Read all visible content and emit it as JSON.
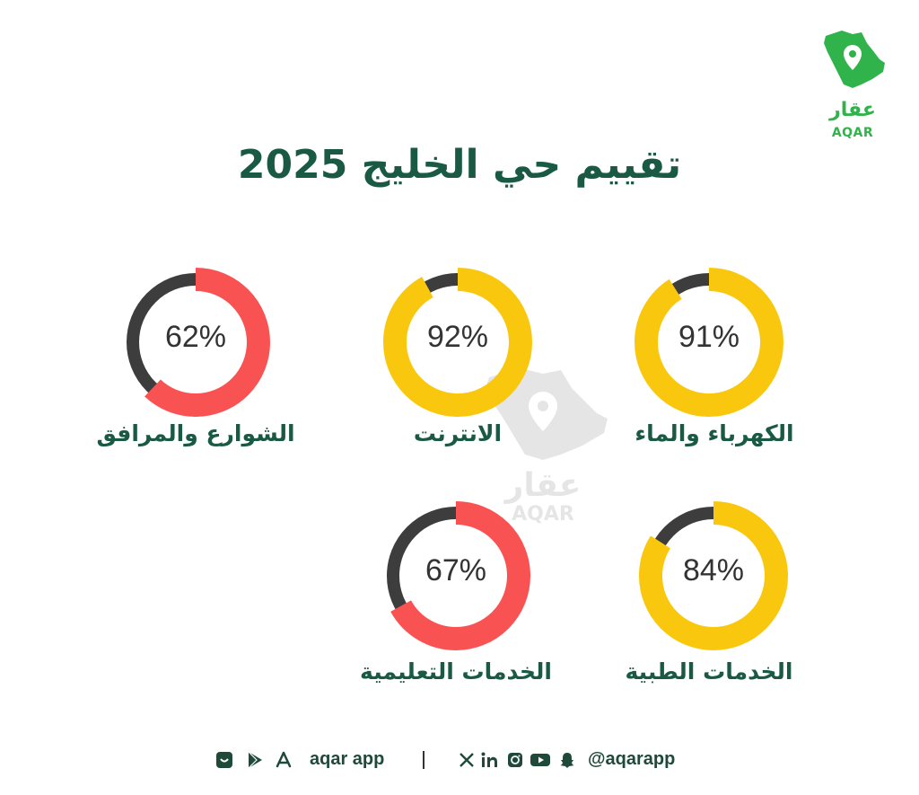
{
  "brand": {
    "logo_ar": "عقار",
    "logo_en": "AQAR",
    "accent": "#2fb34a"
  },
  "title": "تقييم حي الخليج 2025",
  "colors": {
    "high": "#f9c80e",
    "low": "#f95252",
    "remainder": "#3d3d3d",
    "title": "#1a5a45"
  },
  "ratings": [
    {
      "label": "الكهرباء والماء",
      "percent_text": "91%",
      "value": 91,
      "color": "#f9c80e"
    },
    {
      "label": "الانترنت",
      "percent_text": "92%",
      "value": 92,
      "color": "#f9c80e"
    },
    {
      "label": "الشوارع والمرافق",
      "percent_text": "62%",
      "value": 62,
      "color": "#f95252"
    },
    {
      "label": "الخدمات الطبية",
      "percent_text": "84%",
      "value": 84,
      "color": "#f9c80e"
    },
    {
      "label": "الخدمات التعليمية",
      "percent_text": "67%",
      "value": 67,
      "color": "#f95252"
    }
  ],
  "footer": {
    "app_text": "aqar app",
    "handle": "@aqarapp",
    "icons": [
      "store-icon",
      "play-store-icon",
      "app-store-icon",
      "x-icon",
      "linkedin-icon",
      "instagram-icon",
      "youtube-icon",
      "snapchat-icon"
    ]
  }
}
